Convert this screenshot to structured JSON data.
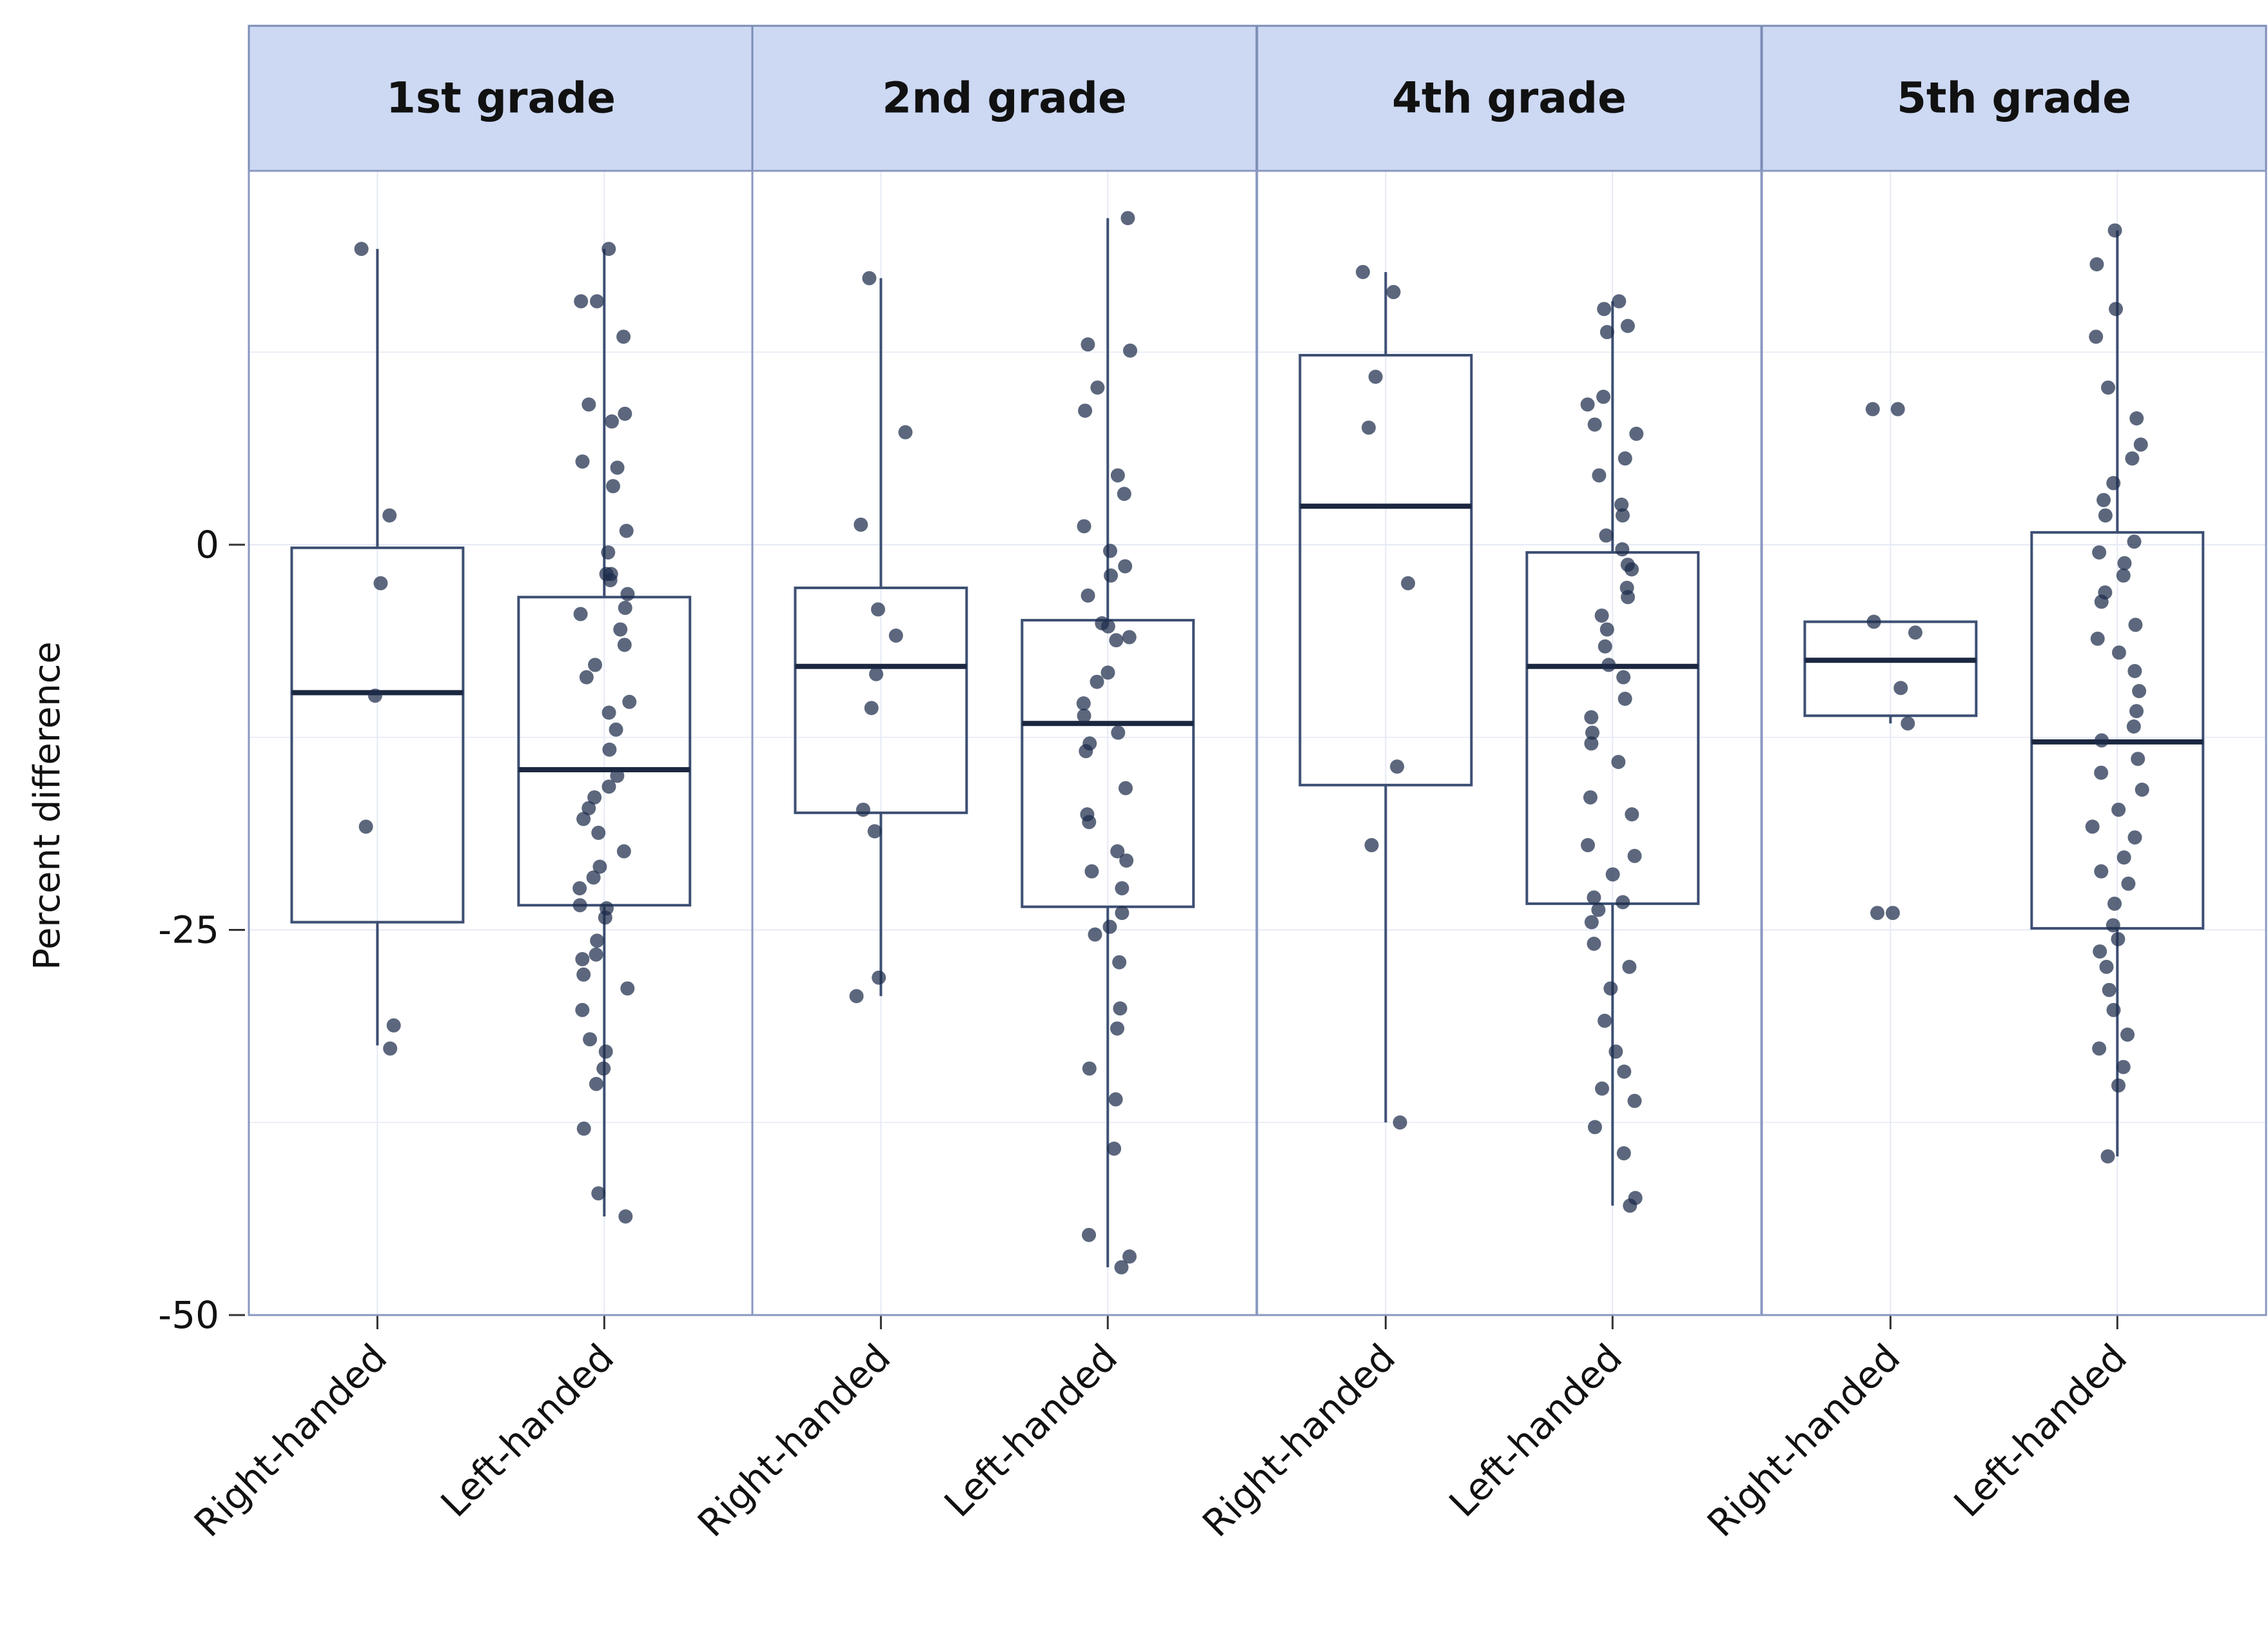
{
  "chart_data": {
    "type": "box",
    "ylabel": "Percent difference",
    "xlabel": "",
    "ylim": [
      -50,
      25
    ],
    "yticks": [
      {
        "value": 0,
        "label": "0"
      },
      {
        "value": -25,
        "label": "-25"
      },
      {
        "value": -50,
        "label": "-50"
      }
    ],
    "ygrid_minor": [
      12.5,
      -12.5,
      -37.5
    ],
    "colors": {
      "strip_fill": "#cdd9f3",
      "strip_border": "#7c8db5",
      "panel_border": "#8a98c0",
      "grid": "#e6eaf6",
      "box": "#3d4f73",
      "median": "#1b2740",
      "point": "#1d2c4b"
    },
    "categories": [
      "Right-handed",
      "Left-handed"
    ],
    "panels": [
      {
        "title": "1st grade",
        "groups": [
          {
            "category": "Right-handed",
            "whisker_low": -32.5,
            "q1": -24.5,
            "median": -9.6,
            "q3": -0.2,
            "whisker_high": 19.2,
            "points": [
              19.2,
              1.9,
              -2.5,
              -9.8,
              -18.3,
              -31.2,
              -32.7
            ]
          },
          {
            "category": "Left-handed",
            "whisker_low": -43.6,
            "q1": -23.4,
            "median": -14.6,
            "q3": -3.4,
            "whisker_high": 19.2,
            "points": [
              19.2,
              15.8,
              15.8,
              13.5,
              9.1,
              8.5,
              8.0,
              5.0,
              5.4,
              3.8,
              0.9,
              -0.5,
              -1.9,
              -1.9,
              -2.3,
              -3.2,
              -4.1,
              -4.5,
              -5.5,
              -6.5,
              -7.8,
              -8.6,
              -10.2,
              -10.9,
              -12.0,
              -13.3,
              -15.0,
              -15.7,
              -16.4,
              -17.1,
              -17.8,
              -18.7,
              -19.9,
              -20.9,
              -21.6,
              -22.3,
              -23.4,
              -23.6,
              -24.2,
              -25.7,
              -26.6,
              -26.9,
              -27.9,
              -28.8,
              -30.2,
              -32.1,
              -32.9,
              -34.0,
              -35.0,
              -37.9,
              -42.1,
              -43.6
            ]
          }
        ]
      },
      {
        "title": "2nd grade",
        "groups": [
          {
            "category": "Right-handed",
            "whisker_low": -29.3,
            "q1": -17.4,
            "median": -7.9,
            "q3": -2.8,
            "whisker_high": 17.3,
            "points": [
              17.3,
              7.3,
              1.3,
              -4.2,
              -5.9,
              -8.4,
              -10.6,
              -17.2,
              -18.6,
              -28.1,
              -29.3
            ]
          },
          {
            "category": "Left-handed",
            "whisker_low": -46.9,
            "q1": -23.5,
            "median": -11.6,
            "q3": -4.9,
            "whisker_high": 21.2,
            "points": [
              21.2,
              13.0,
              12.6,
              10.2,
              8.7,
              4.5,
              3.3,
              1.2,
              -0.4,
              -1.4,
              -2.0,
              -3.3,
              -5.1,
              -5.3,
              -6.0,
              -6.2,
              -8.3,
              -8.9,
              -10.3,
              -11.1,
              -12.2,
              -12.9,
              -13.4,
              -15.8,
              -17.5,
              -18.0,
              -19.9,
              -20.5,
              -21.2,
              -22.3,
              -23.9,
              -24.8,
              -25.3,
              -27.1,
              -30.1,
              -31.4,
              -34.0,
              -36.0,
              -39.2,
              -44.8,
              -46.2,
              -46.9
            ]
          }
        ]
      },
      {
        "title": "4th grade",
        "groups": [
          {
            "category": "Right-handed",
            "whisker_low": -37.5,
            "q1": -15.6,
            "median": 2.5,
            "q3": 12.3,
            "whisker_high": 17.7,
            "points": [
              17.7,
              16.4,
              10.9,
              7.6,
              -2.5,
              -14.4,
              -19.5,
              -37.5
            ]
          },
          {
            "category": "Left-handed",
            "whisker_low": -42.9,
            "q1": -23.3,
            "median": -7.9,
            "q3": -0.5,
            "whisker_high": 15.8,
            "points": [
              15.8,
              15.3,
              14.2,
              13.8,
              9.6,
              9.1,
              7.8,
              7.2,
              5.6,
              4.5,
              2.6,
              1.9,
              0.6,
              -0.3,
              -1.3,
              -1.6,
              -2.8,
              -3.4,
              -4.6,
              -5.5,
              -6.6,
              -7.8,
              -8.6,
              -10.0,
              -11.2,
              -12.2,
              -12.9,
              -14.1,
              -16.4,
              -17.5,
              -19.5,
              -20.2,
              -21.4,
              -22.9,
              -23.2,
              -23.7,
              -24.5,
              -25.9,
              -27.4,
              -28.8,
              -30.9,
              -32.9,
              -34.2,
              -35.3,
              -36.1,
              -37.8,
              -39.5,
              -42.4,
              -42.9
            ]
          }
        ]
      },
      {
        "title": "5th grade",
        "groups": [
          {
            "category": "Right-handed",
            "whisker_low": -11.6,
            "q1": -11.1,
            "median": -7.5,
            "q3": -5.0,
            "whisker_high": -5.0,
            "points": [
              8.8,
              8.8,
              -5.0,
              -5.7,
              -9.3,
              -11.6,
              -23.9,
              -23.9
            ]
          },
          {
            "category": "Left-handed",
            "whisker_low": -39.7,
            "q1": -24.9,
            "median": -12.8,
            "q3": 0.8,
            "whisker_high": 20.4,
            "points": [
              20.4,
              18.2,
              15.3,
              13.5,
              10.2,
              8.2,
              6.5,
              5.6,
              4.0,
              2.9,
              1.9,
              0.2,
              -0.5,
              -1.2,
              -2.0,
              -3.1,
              -3.7,
              -5.2,
              -6.1,
              -7.0,
              -8.2,
              -9.5,
              -10.8,
              -11.8,
              -12.7,
              -13.9,
              -14.8,
              -15.9,
              -17.2,
              -18.3,
              -19.0,
              -20.3,
              -21.2,
              -22.0,
              -23.3,
              -24.7,
              -25.6,
              -26.4,
              -27.4,
              -28.9,
              -30.2,
              -31.8,
              -32.7,
              -33.9,
              -35.1,
              -39.7
            ]
          }
        ]
      }
    ]
  }
}
